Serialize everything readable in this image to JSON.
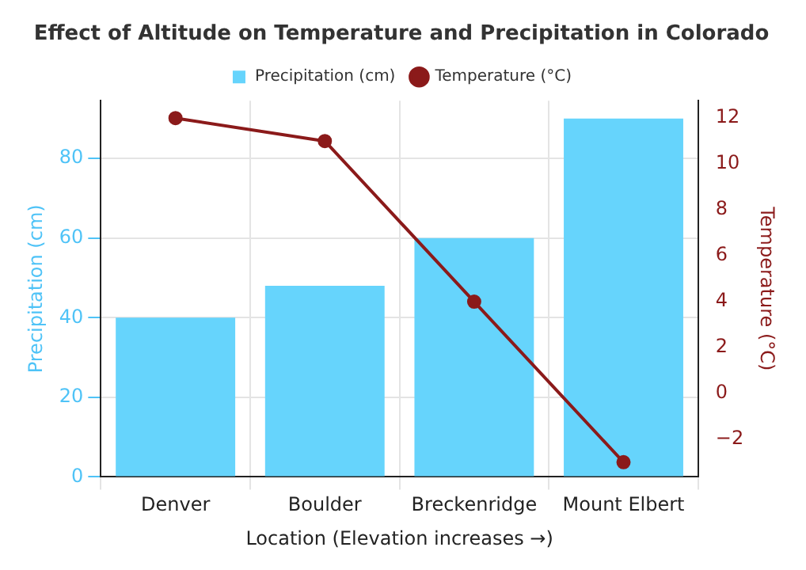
{
  "chart_data": {
    "type": "bar",
    "title": "Effect of Altitude on Temperature and Precipitation in Colorado",
    "xlabel": "Location (Elevation increases →)",
    "ylabel": "Precipitation (cm)",
    "y2label": "Temperature (°C)",
    "categories": [
      "Denver",
      "Boulder",
      "Breckenridge",
      "Mount Elbert"
    ],
    "series": [
      {
        "name": "Precipitation (cm)",
        "color": "#66d4fc",
        "values": [
          40,
          48,
          60,
          90
        ]
      },
      {
        "name": "Temperature (°C)",
        "type": "line",
        "axis": "y2",
        "color": "#8b1a1a",
        "values": [
          12,
          11,
          4,
          -3
        ]
      }
    ],
    "ylim": [
      0,
      94.5
    ],
    "yticks": [
      0,
      20,
      40,
      60,
      80
    ],
    "y2lim": [
      -3.64,
      12.76
    ],
    "y2ticks": [
      {
        "value": -2,
        "label": "−2"
      },
      0,
      2,
      4,
      6,
      8,
      10,
      12
    ],
    "grid": true,
    "legend": "top",
    "marker": "circle",
    "line_style": "solid"
  }
}
